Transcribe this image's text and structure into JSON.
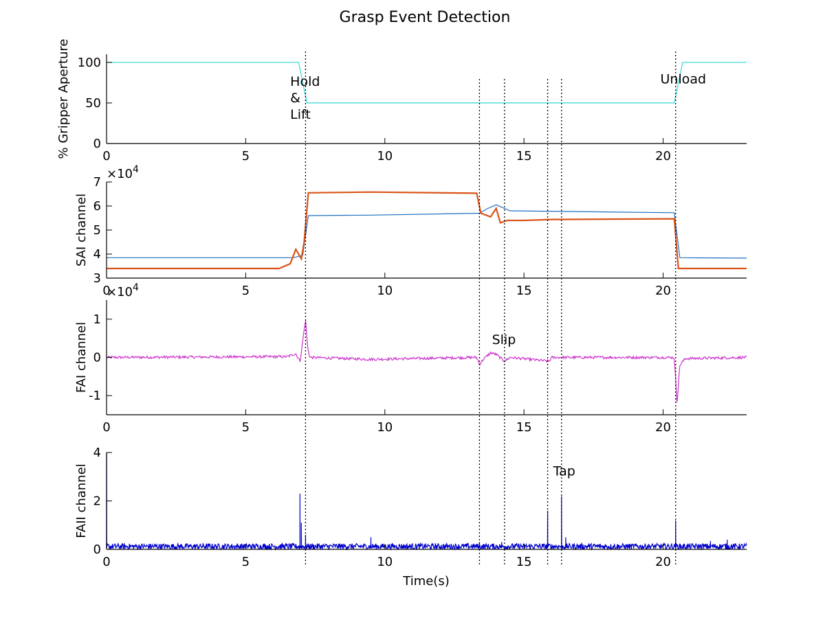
{
  "title": "Grasp Event Detection",
  "xlabel": "Time(s)",
  "event_times": [
    7.15,
    13.4,
    14.3,
    15.85,
    16.35,
    20.45
  ],
  "chart_data": [
    {
      "type": "line",
      "ylabel": "% Gripper Aperture",
      "xlim": [
        0,
        23
      ],
      "ylim": [
        0,
        110
      ],
      "x_ticks": [
        0,
        5,
        10,
        15,
        20
      ],
      "y_ticks": [
        0,
        50,
        100
      ],
      "y_tick_labels": [
        "0",
        "50",
        "100"
      ],
      "exponent_label": "",
      "series": [
        {
          "color": "#33d6d6",
          "x": [
            0,
            6.9,
            7.2,
            20.4,
            20.7,
            23
          ],
          "y": [
            100,
            100,
            50,
            50,
            100,
            100
          ]
        }
      ],
      "annotations": [
        {
          "lines": [
            "Hold",
            "&",
            "Lift"
          ],
          "x": 6.6,
          "y": 71
        },
        {
          "lines": [
            "Unload"
          ],
          "x": 19.9,
          "y": 74
        }
      ]
    },
    {
      "type": "line",
      "ylabel": "SAI channel",
      "xlim": [
        0,
        23
      ],
      "ylim": [
        30000,
        70000
      ],
      "x_ticks": [
        0,
        5,
        10,
        15,
        20
      ],
      "y_ticks": [
        30000,
        40000,
        50000,
        60000,
        70000
      ],
      "y_tick_labels": [
        "3",
        "4",
        "5",
        "6",
        "7"
      ],
      "exponent_label": "×10^4",
      "series": [
        {
          "color": "#1f6fbf",
          "x": [
            0,
            6.7,
            7.05,
            7.25,
            9.5,
            13.4,
            13.7,
            14.0,
            14.5,
            20.4,
            20.6,
            23
          ],
          "y": [
            38500,
            38500,
            39500,
            56000,
            56200,
            57000,
            59000,
            60500,
            58000,
            57200,
            38500,
            38300
          ]
        },
        {
          "color": "#d95319",
          "x": [
            0,
            6.2,
            6.6,
            6.8,
            7.0,
            7.1,
            7.25,
            9.5,
            13.3,
            13.45,
            13.8,
            14.0,
            14.15,
            14.4,
            15.0,
            16.0,
            20.4,
            20.55,
            23
          ],
          "y": [
            34000,
            34000,
            36000,
            42000,
            38000,
            45000,
            65500,
            65800,
            65300,
            57000,
            55500,
            59000,
            53000,
            54000,
            54000,
            54400,
            54700,
            34000,
            34000
          ]
        }
      ],
      "annotations": []
    },
    {
      "type": "line",
      "ylabel": "FAI channel",
      "xlim": [
        0,
        23
      ],
      "ylim": [
        -15000,
        15000
      ],
      "x_ticks": [
        0,
        5,
        10,
        15,
        20
      ],
      "y_ticks": [
        -10000,
        0,
        10000
      ],
      "y_tick_labels": [
        "-1",
        "0",
        "1"
      ],
      "exponent_label": "×10^4",
      "series": [
        {
          "color": "#cc33cc",
          "x": [
            0,
            6.5,
            6.8,
            6.95,
            7.0,
            7.15,
            7.22,
            7.3,
            9.5,
            13.3,
            13.4,
            13.55,
            13.8,
            14.0,
            14.3,
            14.5,
            15.9,
            16.0,
            20.4,
            20.5,
            20.6,
            20.8,
            23
          ],
          "y": [
            0,
            200,
            1000,
            -1000,
            1500,
            10000,
            3000,
            0,
            -500,
            0,
            -1800,
            -400,
            1200,
            800,
            -1000,
            0,
            -1000,
            0,
            0,
            -12000,
            -2000,
            -300,
            0
          ],
          "noise": 350
        }
      ],
      "annotations": [
        {
          "lines": [
            "Slip"
          ],
          "x": 13.85,
          "y": 3500
        }
      ]
    },
    {
      "type": "line",
      "ylabel": "FAII channel",
      "xlim": [
        0,
        23
      ],
      "ylim": [
        0,
        4
      ],
      "x_ticks": [
        0,
        5,
        10,
        15,
        20
      ],
      "y_ticks": [
        0,
        2,
        4
      ],
      "y_tick_labels": [
        "0",
        "2",
        "4"
      ],
      "exponent_label": "",
      "series": [
        {
          "color": "#0000cc",
          "baseline": 0.12,
          "noise": 0.12,
          "spikes": [
            [
              0,
              4.0
            ],
            [
              6.95,
              2.3
            ],
            [
              7.0,
              1.1
            ],
            [
              7.15,
              0.6
            ],
            [
              9.5,
              0.5
            ],
            [
              13.4,
              0.3
            ],
            [
              14.2,
              0.3
            ],
            [
              15.85,
              1.6
            ],
            [
              16.35,
              2.2
            ],
            [
              16.5,
              0.5
            ],
            [
              20.45,
              1.2
            ],
            [
              21.7,
              0.35
            ],
            [
              22.3,
              0.4
            ]
          ]
        }
      ],
      "annotations": [
        {
          "lines": [
            "Tap"
          ],
          "x": 16.05,
          "y": 3.05
        }
      ]
    }
  ]
}
